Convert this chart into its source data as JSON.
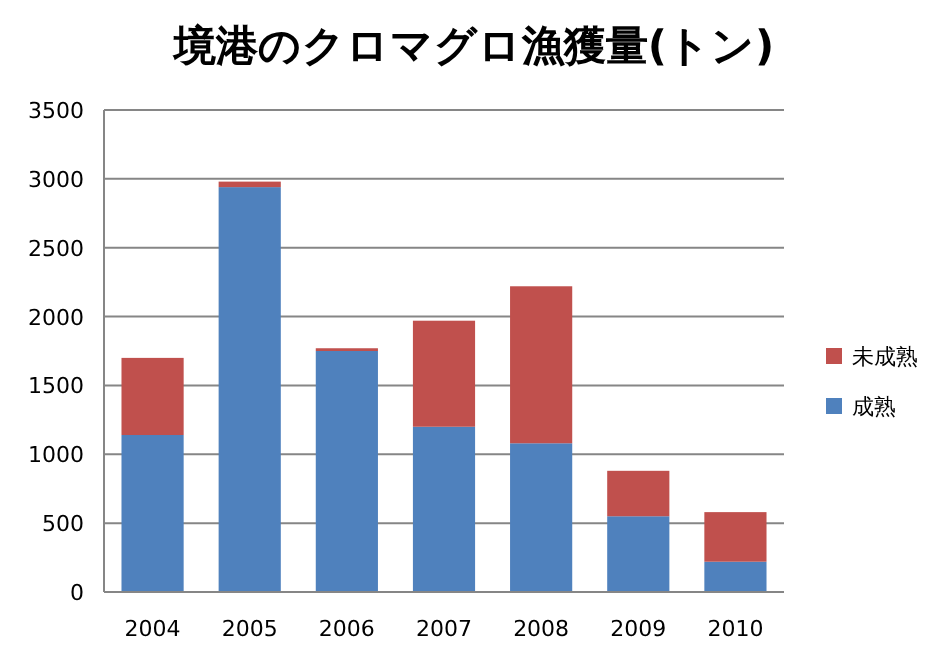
{
  "chart_data": {
    "type": "bar",
    "title": "境港のクロマグロ漁獲量(トン)",
    "stacked": true,
    "categories": [
      "2004",
      "2005",
      "2006",
      "2007",
      "2008",
      "2009",
      "2010"
    ],
    "series": [
      {
        "name": "成熟",
        "color": "#4f81bd",
        "values": [
          1140,
          2940,
          1750,
          1200,
          1080,
          550,
          220
        ]
      },
      {
        "name": "未成熟",
        "color": "#c0504d",
        "values": [
          560,
          40,
          20,
          770,
          1140,
          330,
          360
        ]
      }
    ],
    "ylim": [
      0,
      3500
    ],
    "yticks": [
      0,
      500,
      1000,
      1500,
      2000,
      2500,
      3000,
      3500
    ],
    "grid": "y",
    "legend": "right"
  }
}
